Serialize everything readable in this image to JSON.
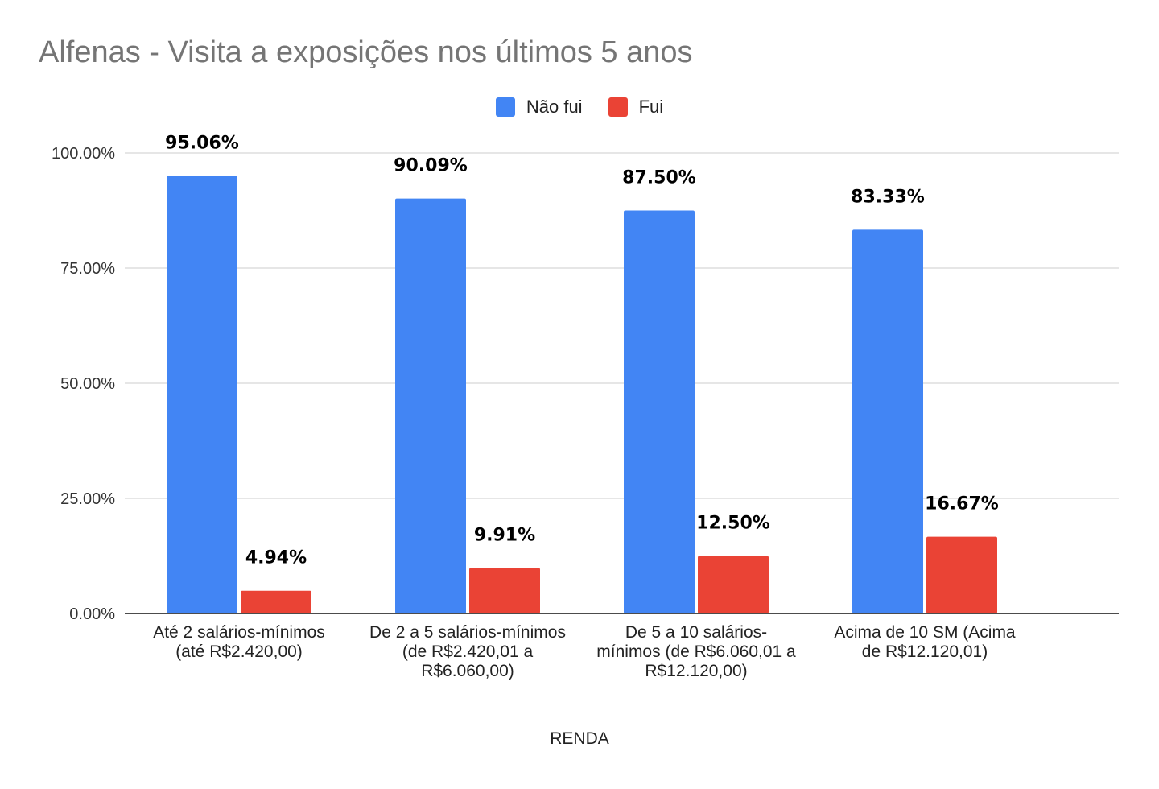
{
  "chart_data": {
    "type": "bar",
    "title": "Alfenas - Visita a exposições nos últimos 5 anos",
    "xlabel": "RENDA",
    "ylabel": "",
    "ylim": [
      0,
      100
    ],
    "yticks": [
      "0.00%",
      "25.00%",
      "50.00%",
      "75.00%",
      "100.00%"
    ],
    "grid": true,
    "legend": "top-center",
    "categories": [
      "Até 2 salários-mínimos (até R$2.420,00)",
      "De 2 a 5 salários-mínimos (de R$2.420,01 a R$6.060,00)",
      "De 5 a 10 salários-mínimos (de R$6.060,01 a R$12.120,00)",
      "Acima de 10 SM (Acima de R$12.120,01)"
    ],
    "series": [
      {
        "name": "Não fui",
        "color": "#4285F4",
        "values": [
          95.06,
          90.09,
          87.5,
          83.33
        ],
        "labels": [
          "95.06%",
          "90.09%",
          "87.50%",
          "83.33%"
        ]
      },
      {
        "name": "Fui",
        "color": "#EA4335",
        "values": [
          4.94,
          9.91,
          12.5,
          16.67
        ],
        "labels": [
          "4.94%",
          "9.91%",
          "12.50%",
          "16.67%"
        ]
      }
    ]
  }
}
